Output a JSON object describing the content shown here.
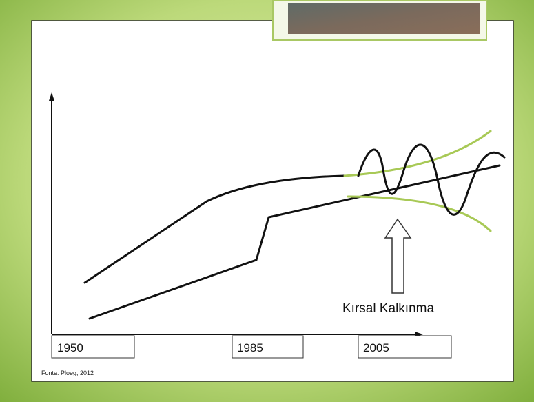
{
  "axis_labels": [
    "1950",
    "1985",
    "2005"
  ],
  "annotation": "Kırsal Kalkınma",
  "source": "Fonte: Ploeg, 2012"
}
